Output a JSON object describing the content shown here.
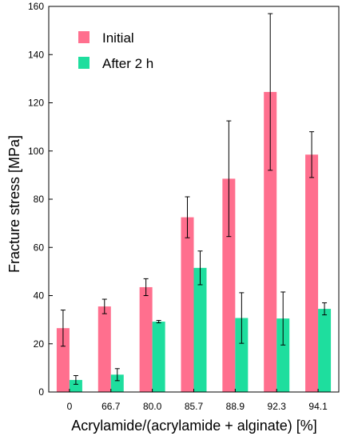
{
  "chart_data": {
    "type": "bar",
    "title": "",
    "xlabel": "Acrylamide/(acrylamide + alginate) [%]",
    "ylabel": "Fracture stress [MPa]",
    "ylim": [
      0,
      160
    ],
    "yticks": [
      0,
      20,
      40,
      60,
      80,
      100,
      120,
      140,
      160
    ],
    "grid": false,
    "legend_position": "top-left",
    "categories": [
      "0",
      "66.7",
      "80.0",
      "85.7",
      "88.9",
      "92.3",
      "94.1"
    ],
    "series": [
      {
        "name": "Initial",
        "color": "#ff6f8e",
        "values": [
          26.5,
          35.5,
          43.5,
          72.5,
          88.5,
          124.5,
          98.5
        ],
        "error": [
          7.5,
          3,
          3.5,
          8.5,
          24,
          32.5,
          9.5
        ]
      },
      {
        "name": "After 2 h",
        "color": "#1ede9e",
        "values": [
          5,
          7.2,
          29.2,
          51.5,
          30.7,
          30.5,
          34.5
        ],
        "error": [
          1.8,
          2.5,
          0.5,
          7,
          10.5,
          11,
          2.5
        ]
      }
    ]
  }
}
